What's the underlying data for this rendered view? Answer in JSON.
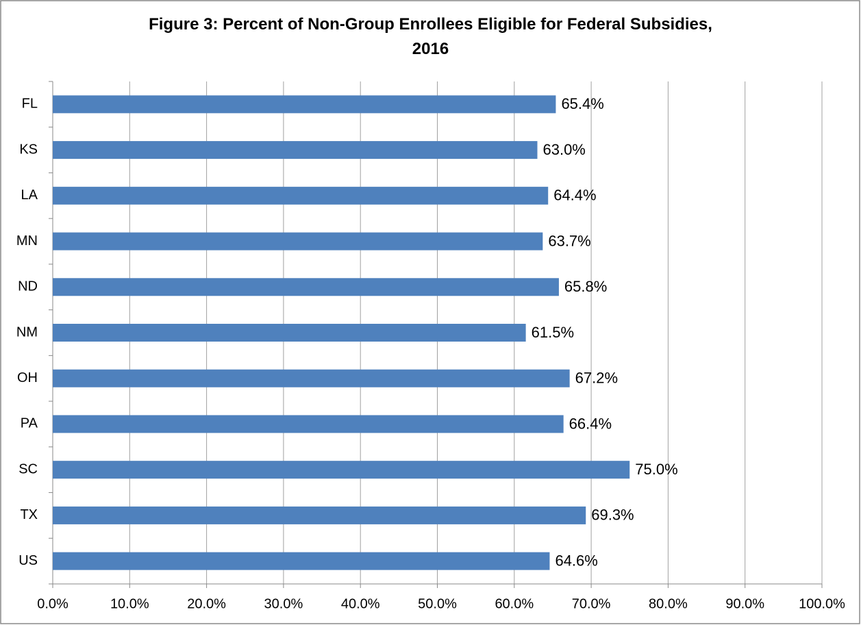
{
  "chart_data": {
    "type": "barh",
    "title": "Figure 3:  Percent of Non-Group  Enrollees Eligible for Federal Subsidies,\n2016",
    "categories": [
      "FL",
      "KS",
      "LA",
      "MN",
      "ND",
      "NM",
      "OH",
      "PA",
      "SC",
      "TX",
      "US"
    ],
    "values": [
      65.4,
      63.0,
      64.4,
      63.7,
      65.8,
      61.5,
      67.2,
      66.4,
      75.0,
      69.3,
      64.6
    ],
    "value_labels": [
      "65.4%",
      "63.0%",
      "64.4%",
      "63.7%",
      "65.8%",
      "61.5%",
      "67.2%",
      "66.4%",
      "75.0%",
      "69.3%",
      "64.6%"
    ],
    "color": "#4f81bd",
    "xlim": [
      0,
      100
    ],
    "xticks": [
      {
        "value": 0,
        "label": "0.0%"
      },
      {
        "value": 10,
        "label": "10.0%"
      },
      {
        "value": 20,
        "label": "20.0%"
      },
      {
        "value": 30,
        "label": "30.0%"
      },
      {
        "value": 40,
        "label": "40.0%"
      },
      {
        "value": 50,
        "label": "50.0%"
      },
      {
        "value": 60,
        "label": "60.0%"
      },
      {
        "value": 70,
        "label": "70.0%"
      },
      {
        "value": 80,
        "label": "80.0%"
      },
      {
        "value": 90,
        "label": "90.0%"
      },
      {
        "value": 100,
        "label": "100.0%"
      }
    ],
    "grid": true
  }
}
